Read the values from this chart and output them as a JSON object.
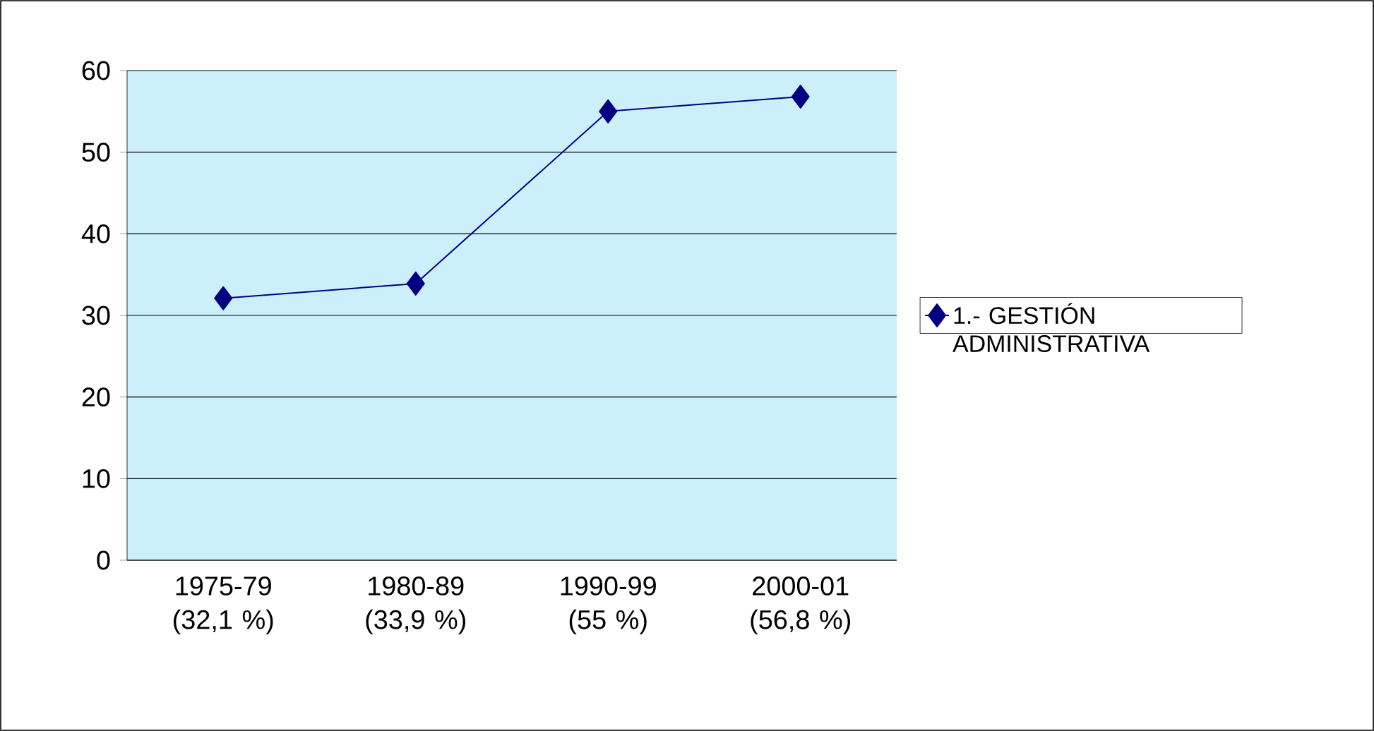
{
  "chart_data": {
    "type": "line",
    "categories": [
      "1975-79 (32,1 %)",
      "1980-89 (33,9 %)",
      "1990-99 (55 %)",
      "2000-01 (56,8 %)"
    ],
    "series": [
      {
        "name": "1.- GESTIÓN ADMINISTRATIVA",
        "color": "#000080",
        "values": [
          32.1,
          33.9,
          55,
          56.8
        ]
      }
    ],
    "ylim": [
      0,
      60
    ],
    "yticks": [
      0,
      10,
      20,
      30,
      40,
      50,
      60
    ],
    "grid": "y",
    "legend": "right",
    "marker": "diamond",
    "line_style": "solid"
  }
}
